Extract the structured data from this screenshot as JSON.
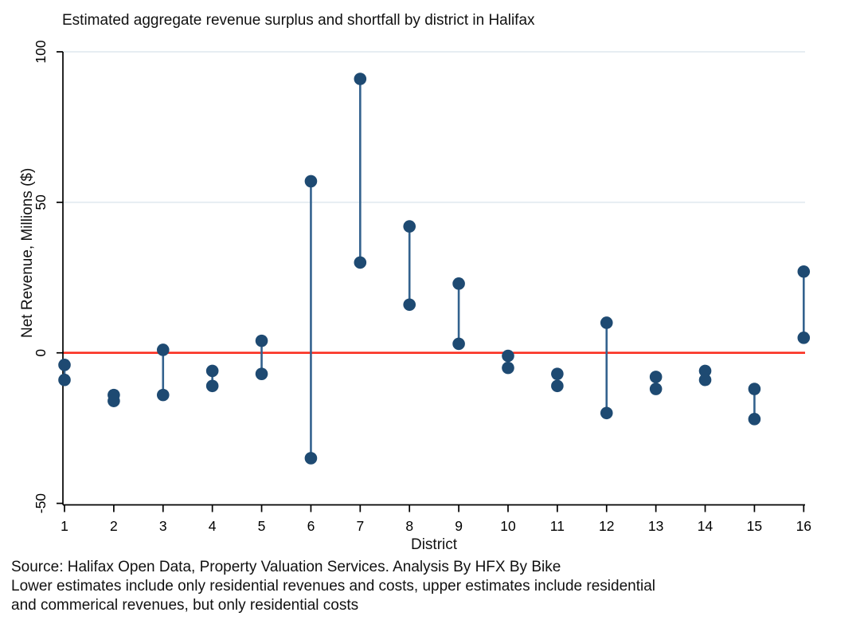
{
  "title": "Estimated aggregate revenue surplus and shortfall by district in Halifax",
  "source_lines": [
    "Source: Halifax Open Data, Property Valuation Services. Analysis By HFX By Bike",
    "Lower estimates include only residential revenues and costs, upper estimates include residential",
    "and commerical revenues, but only residential costs"
  ],
  "chart_data": {
    "type": "scatter",
    "subtype": "vertical-range-dumbbell",
    "title": "Estimated aggregate revenue surplus and shortfall by district in Halifax",
    "xlabel": "District",
    "ylabel": "Net Revenue, Millions ($)",
    "categories": [
      "1",
      "2",
      "3",
      "4",
      "5",
      "6",
      "7",
      "8",
      "9",
      "10",
      "11",
      "12",
      "13",
      "14",
      "15",
      "16"
    ],
    "series": [
      {
        "name": "Upper estimate",
        "values": [
          -4,
          -14,
          1,
          -6,
          4,
          57,
          91,
          42,
          23,
          -1,
          -7,
          10,
          -8,
          -6,
          -12,
          27
        ]
      },
      {
        "name": "Lower estimate",
        "values": [
          -9,
          -16,
          -14,
          -11,
          -7,
          -35,
          30,
          16,
          3,
          -5,
          -11,
          -20,
          -12,
          -9,
          -22,
          5
        ]
      }
    ],
    "ylim": [
      -50,
      100
    ],
    "y_ticks": [
      100,
      50,
      0,
      -50
    ],
    "gridline_values": [
      100,
      50
    ],
    "zero_reference_line": 0,
    "grid": true,
    "legend": "none",
    "colors": {
      "point": "#1e4a72",
      "connector": "#33628e",
      "zero_line": "#fa2f20",
      "gridline": "#e6edf2",
      "axis": "#000000",
      "background": "#ffffff"
    }
  }
}
